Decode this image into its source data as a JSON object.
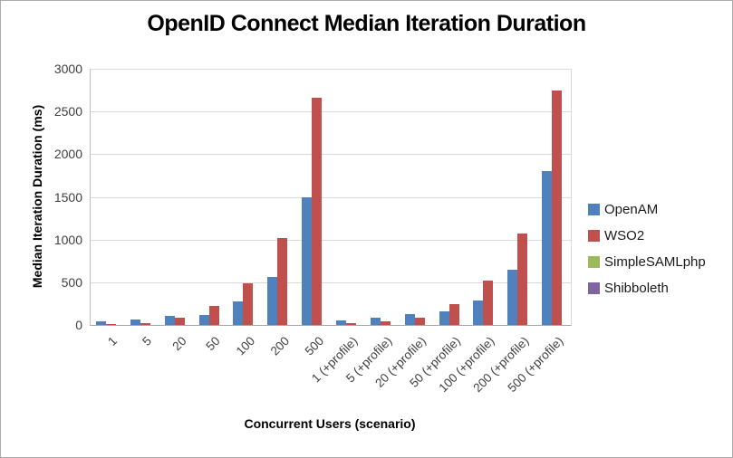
{
  "chart_data": {
    "type": "bar",
    "title": "OpenID Connect Median Iteration Duration",
    "xlabel": "Concurrent Users (scenario)",
    "ylabel": "Median Iteration Duration (ms)",
    "ylim": [
      0,
      3000
    ],
    "yticks": [
      0,
      500,
      1000,
      1500,
      2000,
      2500,
      3000
    ],
    "grid": true,
    "legend_position": "right",
    "categories": [
      "1",
      "5",
      "20",
      "50",
      "100",
      "200",
      "500",
      "1 (+profile)",
      "5 (+profile)",
      "20 (+profile)",
      "50 (+profile)",
      "100 (+profile)",
      "200 (+profile)",
      "500 (+profile)"
    ],
    "series": [
      {
        "name": "OpenAM",
        "color": "#4F81BD",
        "values": [
          40,
          65,
          110,
          120,
          275,
          560,
          1490,
          50,
          80,
          130,
          155,
          290,
          645,
          1805
        ]
      },
      {
        "name": "WSO2",
        "color": "#C0504D",
        "values": [
          15,
          25,
          80,
          220,
          490,
          1020,
          2660,
          18,
          38,
          85,
          245,
          520,
          1070,
          2750
        ]
      },
      {
        "name": "SimpleSAMLphp",
        "color": "#9BBB59",
        "values": [
          0,
          0,
          0,
          0,
          0,
          0,
          0,
          0,
          0,
          0,
          0,
          0,
          0,
          0
        ]
      },
      {
        "name": "Shibboleth",
        "color": "#8064A2",
        "values": [
          0,
          0,
          0,
          0,
          0,
          0,
          0,
          0,
          0,
          0,
          0,
          0,
          0,
          0
        ]
      }
    ]
  }
}
